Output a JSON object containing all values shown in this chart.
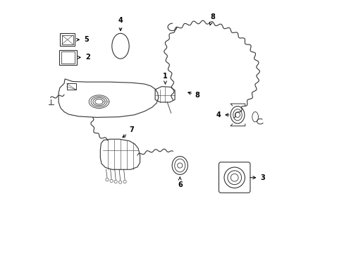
{
  "title": "",
  "background_color": "#ffffff",
  "line_color": "#333333",
  "label_color": "#000000",
  "fig_width": 4.89,
  "fig_height": 3.6,
  "dpi": 100
}
